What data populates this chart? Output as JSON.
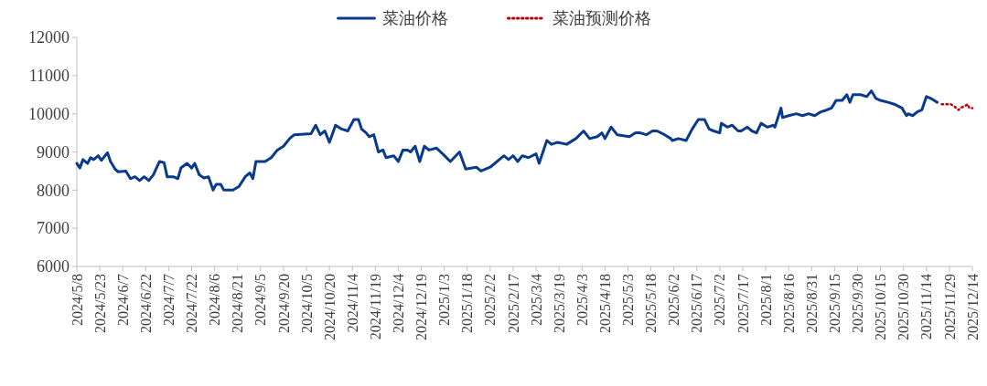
{
  "chart_data": {
    "type": "line",
    "legend": "top",
    "xlim": [
      "2024-05-08",
      "2025-12-14"
    ],
    "xticks": [
      {
        "value": "2024-05-08",
        "label": "2024/5/8"
      },
      {
        "value": "2024-05-23",
        "label": "2024/5/23"
      },
      {
        "value": "2024-06-07",
        "label": "2024/6/7"
      },
      {
        "value": "2024-06-22",
        "label": "2024/6/22"
      },
      {
        "value": "2024-07-07",
        "label": "2024/7/7"
      },
      {
        "value": "2024-07-22",
        "label": "2024/7/22"
      },
      {
        "value": "2024-08-06",
        "label": "2024/8/6"
      },
      {
        "value": "2024-08-21",
        "label": "2024/8/21"
      },
      {
        "value": "2024-09-05",
        "label": "2024/9/5"
      },
      {
        "value": "2024-09-20",
        "label": "2024/9/20"
      },
      {
        "value": "2024-10-05",
        "label": "2024/10/5"
      },
      {
        "value": "2024-10-20",
        "label": "2024/10/20"
      },
      {
        "value": "2024-11-04",
        "label": "2024/11/4"
      },
      {
        "value": "2024-11-19",
        "label": "2024/11/19"
      },
      {
        "value": "2024-12-04",
        "label": "2024/12/4"
      },
      {
        "value": "2024-12-19",
        "label": "2024/12/19"
      },
      {
        "value": "2025-01-03",
        "label": "2025/1/3"
      },
      {
        "value": "2025-01-18",
        "label": "2025/1/18"
      },
      {
        "value": "2025-02-02",
        "label": "2025/2/2"
      },
      {
        "value": "2025-02-17",
        "label": "2025/2/17"
      },
      {
        "value": "2025-03-04",
        "label": "2025/3/4"
      },
      {
        "value": "2025-03-19",
        "label": "2025/3/19"
      },
      {
        "value": "2025-04-03",
        "label": "2025/4/3"
      },
      {
        "value": "2025-04-18",
        "label": "2025/4/18"
      },
      {
        "value": "2025-05-03",
        "label": "2025/5/3"
      },
      {
        "value": "2025-05-18",
        "label": "2025/5/18"
      },
      {
        "value": "2025-06-02",
        "label": "2025/6/2"
      },
      {
        "value": "2025-06-17",
        "label": "2025/6/17"
      },
      {
        "value": "2025-07-02",
        "label": "2025/7/2"
      },
      {
        "value": "2025-07-17",
        "label": "2025/7/17"
      },
      {
        "value": "2025-08-01",
        "label": "2025/8/1"
      },
      {
        "value": "2025-08-16",
        "label": "2025/8/16"
      },
      {
        "value": "2025-08-31",
        "label": "2025/8/31"
      },
      {
        "value": "2025-09-15",
        "label": "2025/9/15"
      },
      {
        "value": "2025-09-30",
        "label": "2025/9/30"
      },
      {
        "value": "2025-10-15",
        "label": "2025/10/15"
      },
      {
        "value": "2025-10-30",
        "label": "2025/10/30"
      },
      {
        "value": "2025-11-14",
        "label": "2025/11/14"
      },
      {
        "value": "2025-11-29",
        "label": "2025/11/29"
      },
      {
        "value": "2025-12-14",
        "label": "2025/12/14"
      }
    ],
    "ylim": [
      6000,
      12000
    ],
    "yticks": [
      6000,
      7000,
      8000,
      9000,
      10000,
      11000,
      12000
    ],
    "series": [
      {
        "name": "菜油价格",
        "color": "#0a3a8a",
        "line_style": "solid",
        "x": [
          "2024-05-08",
          "2024-05-10",
          "2024-05-12",
          "2024-05-15",
          "2024-05-17",
          "2024-05-19",
          "2024-05-22",
          "2024-05-24",
          "2024-05-28",
          "2024-05-30",
          "2024-06-02",
          "2024-06-04",
          "2024-06-09",
          "2024-06-12",
          "2024-06-15",
          "2024-06-18",
          "2024-06-21",
          "2024-06-24",
          "2024-06-27",
          "2024-07-01",
          "2024-07-04",
          "2024-07-06",
          "2024-07-10",
          "2024-07-13",
          "2024-07-15",
          "2024-07-19",
          "2024-07-22",
          "2024-07-24",
          "2024-07-27",
          "2024-07-30",
          "2024-08-02",
          "2024-08-05",
          "2024-08-07",
          "2024-08-10",
          "2024-08-12",
          "2024-08-18",
          "2024-08-22",
          "2024-08-26",
          "2024-08-29",
          "2024-08-31",
          "2024-09-02",
          "2024-09-08",
          "2024-09-12",
          "2024-09-16",
          "2024-09-20",
          "2024-09-24",
          "2024-09-27",
          "2024-10-08",
          "2024-10-11",
          "2024-10-14",
          "2024-10-17",
          "2024-10-20",
          "2024-10-24",
          "2024-10-28",
          "2024-11-01",
          "2024-11-05",
          "2024-11-08",
          "2024-11-10",
          "2024-11-13",
          "2024-11-15",
          "2024-11-18",
          "2024-11-21",
          "2024-11-24",
          "2024-11-26",
          "2024-12-01",
          "2024-12-04",
          "2024-12-07",
          "2024-12-10",
          "2024-12-12",
          "2024-12-15",
          "2024-12-18",
          "2024-12-21",
          "2024-12-24",
          "2024-12-29",
          "2025-01-02",
          "2025-01-07",
          "2025-01-13",
          "2025-01-17",
          "2025-01-24",
          "2025-01-27",
          "2025-02-02",
          "2025-02-08",
          "2025-02-11",
          "2025-02-14",
          "2025-02-17",
          "2025-02-20",
          "2025-02-23",
          "2025-02-27",
          "2025-03-04",
          "2025-03-06",
          "2025-03-11",
          "2025-03-14",
          "2025-03-18",
          "2025-03-24",
          "2025-03-30",
          "2025-04-04",
          "2025-04-08",
          "2025-04-13",
          "2025-04-16",
          "2025-04-18",
          "2025-04-22",
          "2025-04-26",
          "2025-05-04",
          "2025-05-08",
          "2025-05-11",
          "2025-05-15",
          "2025-05-19",
          "2025-05-22",
          "2025-05-27",
          "2025-05-31",
          "2025-06-01",
          "2025-06-05",
          "2025-06-10",
          "2025-06-14",
          "2025-06-18",
          "2025-06-22",
          "2025-06-25",
          "2025-06-28",
          "2025-07-02",
          "2025-07-03",
          "2025-07-07",
          "2025-07-10",
          "2025-07-14",
          "2025-07-16",
          "2025-07-20",
          "2025-07-23",
          "2025-07-26",
          "2025-07-29",
          "2025-08-02",
          "2025-08-06",
          "2025-08-07",
          "2025-08-09",
          "2025-08-11",
          "2025-08-12",
          "2025-08-16",
          "2025-08-21",
          "2025-08-25",
          "2025-08-29",
          "2025-09-02",
          "2025-09-06",
          "2025-09-10",
          "2025-09-13",
          "2025-09-16",
          "2025-09-20",
          "2025-09-23",
          "2025-09-25",
          "2025-09-27",
          "2025-10-02",
          "2025-10-06",
          "2025-10-09",
          "2025-10-12",
          "2025-10-15",
          "2025-10-20",
          "2025-10-24",
          "2025-10-29",
          "2025-11-01",
          "2025-11-02",
          "2025-11-05",
          "2025-11-08",
          "2025-11-11",
          "2025-11-14",
          "2025-11-17",
          "2025-11-19",
          "2025-11-21"
        ],
        "values": [
          8700,
          8580,
          8800,
          8700,
          8850,
          8800,
          8900,
          8780,
          8980,
          8750,
          8550,
          8480,
          8500,
          8300,
          8350,
          8250,
          8350,
          8250,
          8400,
          8750,
          8720,
          8350,
          8350,
          8300,
          8580,
          8700,
          8580,
          8700,
          8400,
          8320,
          8350,
          8000,
          8150,
          8150,
          8000,
          8000,
          8100,
          8350,
          8450,
          8300,
          8750,
          8750,
          8850,
          9050,
          9150,
          9350,
          9450,
          9480,
          9700,
          9450,
          9550,
          9250,
          9700,
          9600,
          9550,
          9850,
          9850,
          9600,
          9500,
          9400,
          9450,
          9000,
          9050,
          8850,
          8900,
          8750,
          9050,
          9050,
          9000,
          9150,
          8750,
          9150,
          9050,
          9100,
          8950,
          8750,
          9000,
          8550,
          8600,
          8500,
          8600,
          8800,
          8900,
          8800,
          8900,
          8750,
          8900,
          8850,
          8950,
          8700,
          9300,
          9200,
          9250,
          9200,
          9350,
          9550,
          9350,
          9400,
          9500,
          9350,
          9650,
          9450,
          9400,
          9500,
          9500,
          9450,
          9550,
          9550,
          9450,
          9350,
          9300,
          9350,
          9300,
          9600,
          9850,
          9850,
          9600,
          9550,
          9500,
          9750,
          9650,
          9700,
          9550,
          9550,
          9650,
          9550,
          9500,
          9750,
          9650,
          9700,
          9650,
          9900,
          10150,
          9900,
          9950,
          10000,
          9950,
          10000,
          9950,
          10050,
          10100,
          10150,
          10350,
          10350,
          10500,
          10300,
          10500,
          10500,
          10450,
          10600,
          10400,
          10350,
          10300,
          10250,
          10150,
          9950,
          10000,
          9950,
          10050,
          10100,
          10450,
          10400,
          10350,
          10300
        ]
      },
      {
        "name": "菜油预测价格",
        "color": "#c00000",
        "line_style": "dotted",
        "x": [
          "2025-11-24",
          "2025-11-27",
          "2025-11-30",
          "2025-12-02",
          "2025-12-05",
          "2025-12-06",
          "2025-12-09",
          "2025-12-11",
          "2025-12-12",
          "2025-12-14"
        ],
        "values": [
          10250,
          10250,
          10250,
          10200,
          10100,
          10150,
          10200,
          10250,
          10150,
          10150
        ]
      }
    ]
  }
}
